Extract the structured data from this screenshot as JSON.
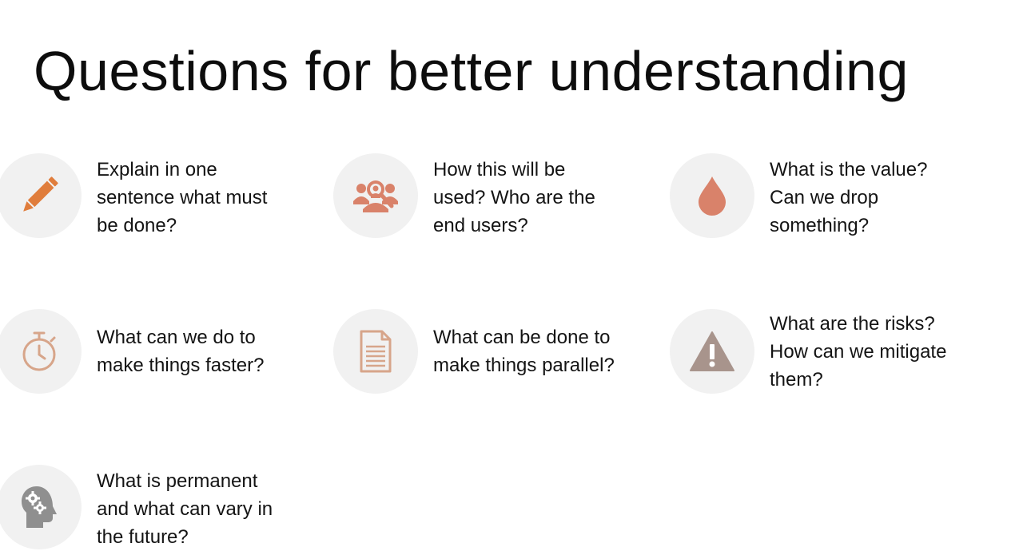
{
  "slide": {
    "title": "Questions for better understanding"
  },
  "items": [
    {
      "icon": "pencil-icon",
      "lines": [
        "Explain in one",
        "sentence what must",
        "be done?"
      ]
    },
    {
      "icon": "users-search-icon",
      "lines": [
        "How this will be",
        "used? Who are the",
        "end users?"
      ]
    },
    {
      "icon": "drop-icon",
      "lines": [
        "What is the value?",
        "Can we drop",
        "something?"
      ]
    },
    {
      "icon": "stopwatch-icon",
      "lines": [
        "What can we do to",
        "make things faster?"
      ]
    },
    {
      "icon": "document-icon",
      "lines": [
        "What can be done to",
        "make things parallel?"
      ]
    },
    {
      "icon": "warning-icon",
      "lines": [
        "What are the risks?",
        "How can we mitigate",
        "them?"
      ]
    },
    {
      "icon": "head-gears-icon",
      "lines": [
        "What is permanent",
        "and what can vary in",
        "the future?"
      ]
    }
  ],
  "colors": {
    "accent_orange": "#e07d3c",
    "accent_terracotta": "#d9826a",
    "accent_warm_brown": "#d7a58a",
    "accent_taupe": "#a8948c",
    "accent_gray": "#8f8f8f",
    "circle_bg": "#f1f1f1"
  }
}
